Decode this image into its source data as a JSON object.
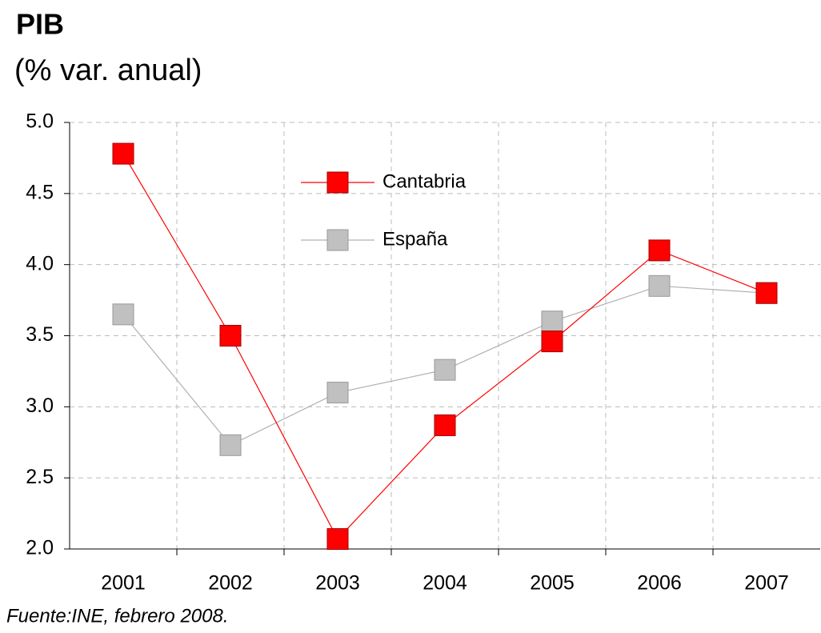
{
  "chart_data": {
    "type": "line",
    "title": "PIB",
    "subtitle": "(% var. anual)",
    "source": "Fuente:INE, febrero 2008.",
    "categories": [
      "2001",
      "2002",
      "2003",
      "2004",
      "2005",
      "2006",
      "2007"
    ],
    "series": [
      {
        "name": "Cantabria",
        "color": "#ff0000",
        "values": [
          4.78,
          3.5,
          2.07,
          2.87,
          3.46,
          4.1,
          3.8
        ]
      },
      {
        "name": "España",
        "color": "#c0c0c0",
        "values": [
          3.65,
          2.73,
          3.1,
          3.26,
          3.6,
          3.85,
          3.8
        ]
      }
    ],
    "ylim": [
      2,
      5
    ],
    "yticks": [
      {
        "value": 2,
        "label": "2.0"
      },
      {
        "value": 2.5,
        "label": "2.5"
      },
      {
        "value": 3,
        "label": "3.0"
      },
      {
        "value": 3.5,
        "label": "3.5"
      },
      {
        "value": 4,
        "label": "4.0"
      },
      {
        "value": 4.5,
        "label": "4.5"
      },
      {
        "value": 5,
        "label": "5.0"
      }
    ],
    "grid": true
  }
}
